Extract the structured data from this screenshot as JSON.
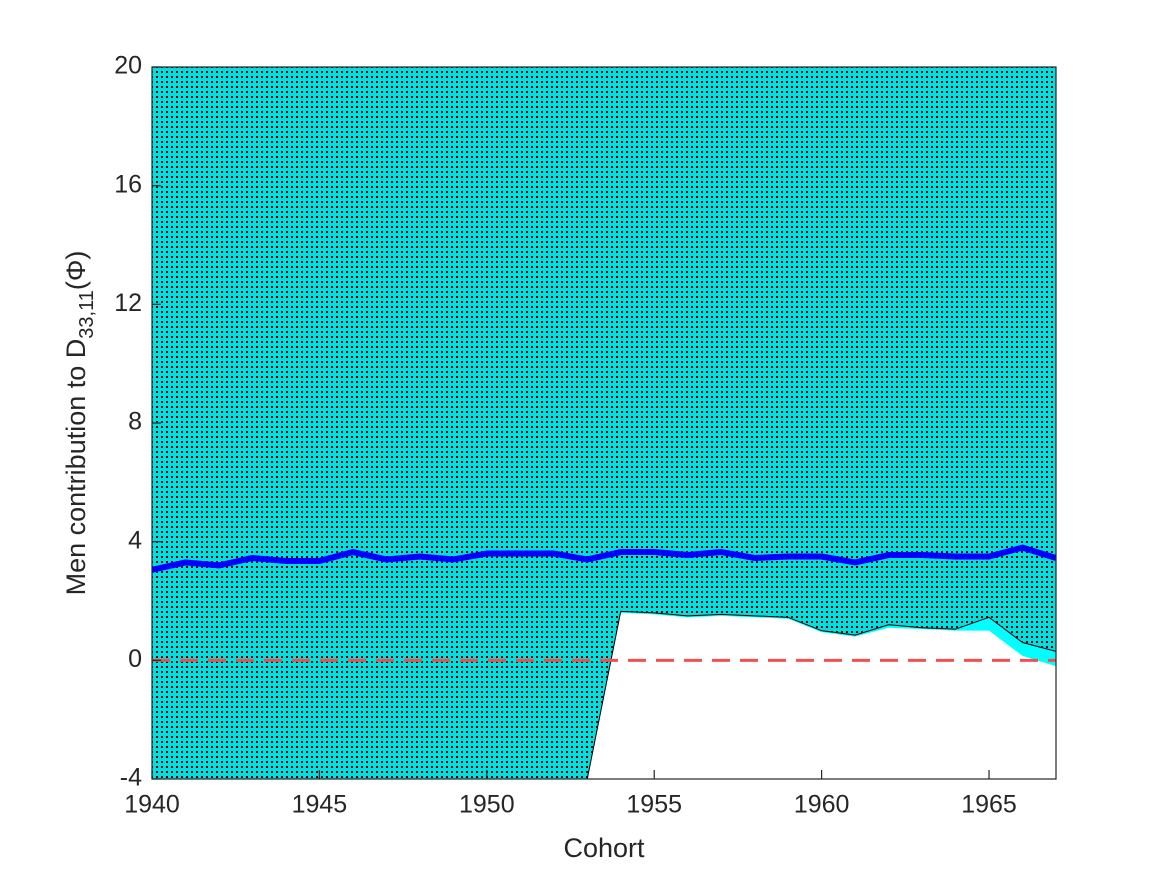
{
  "chart_data": {
    "type": "line",
    "xlabel": "Cohort",
    "ylabel": {
      "text": "Men contribution to D",
      "subscript": "33,11",
      "suffix": "(Φ)"
    },
    "x": [
      1940,
      1941,
      1942,
      1943,
      1944,
      1945,
      1946,
      1947,
      1948,
      1949,
      1950,
      1951,
      1952,
      1953,
      1954,
      1955,
      1956,
      1957,
      1958,
      1959,
      1960,
      1961,
      1962,
      1963,
      1964,
      1965,
      1966,
      1967
    ],
    "series": [
      {
        "color": "#0000ff",
        "values": [
          3.05,
          3.3,
          3.2,
          3.45,
          3.35,
          3.35,
          3.65,
          3.4,
          3.5,
          3.4,
          3.6,
          3.6,
          3.6,
          3.4,
          3.65,
          3.65,
          3.55,
          3.65,
          3.45,
          3.5,
          3.5,
          3.3,
          3.55,
          3.55,
          3.5,
          3.5,
          3.8,
          3.45
        ]
      },
      {
        "color": "#000000",
        "values": [
          null,
          null,
          null,
          null,
          null,
          null,
          null,
          null,
          null,
          null,
          null,
          null,
          null,
          -4,
          1.65,
          1.6,
          1.5,
          1.55,
          1.5,
          1.45,
          1.0,
          0.85,
          1.2,
          1.1,
          1.05,
          1.45,
          0.6,
          0.3
        ]
      },
      {
        "color": "#00ffff",
        "values": [
          null,
          null,
          null,
          null,
          null,
          null,
          null,
          null,
          null,
          null,
          null,
          null,
          null,
          -4,
          1.6,
          1.55,
          1.45,
          1.5,
          1.45,
          1.4,
          0.95,
          0.8,
          1.1,
          1.05,
          1.0,
          1.0,
          0.15,
          -0.2
        ]
      }
    ],
    "region_color": "#00c8c8",
    "reference_line": {
      "value": 0,
      "color": "#f05050"
    },
    "xlim": [
      1940,
      1967
    ],
    "xticks": [
      1940,
      1945,
      1950,
      1955,
      1960,
      1965
    ],
    "ylim": [
      -4,
      20
    ],
    "yticks": [
      -4,
      0,
      4,
      8,
      12,
      16,
      20
    ]
  }
}
